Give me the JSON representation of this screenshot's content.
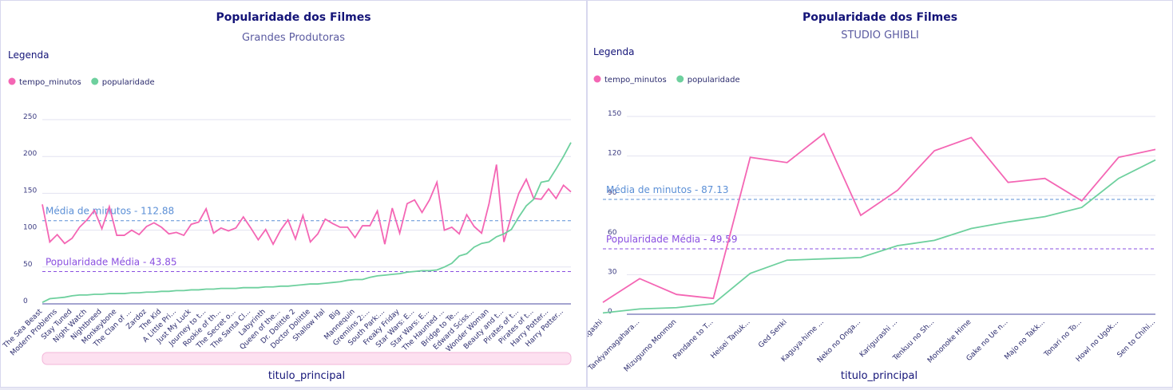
{
  "chart_data": [
    {
      "type": "line",
      "title": "Popularidade dos Filmes",
      "subtitle": "Grandes Produtoras",
      "legend_title": "Legenda",
      "x_label": "titulo_principal",
      "categories": [
        "The Sea Beast",
        null,
        "Modern Problems",
        null,
        "Stay Tuned",
        null,
        "Night Watch",
        null,
        "Nightbreed",
        null,
        "Monkeybone",
        null,
        "The Clan of ...",
        null,
        "Zardoz",
        null,
        "The Kid",
        null,
        "A Little Pri...",
        null,
        "Just My Luck",
        null,
        "Journey to t...",
        null,
        "Rookie of th...",
        null,
        "The Secret o...",
        null,
        "The Santa Cl...",
        null,
        "Labyrinth",
        null,
        "Queen of the...",
        null,
        "Dr. Dolittle 2",
        null,
        "Doctor Dolittle",
        null,
        "Shallow Hal",
        null,
        "Big",
        null,
        "Mannequin",
        null,
        "Gremlins 2:...",
        null,
        "South Park:...",
        null,
        "Freaky Friday",
        null,
        "Star Wars: E...",
        null,
        "Star Wars: E...",
        null,
        "The Haunted ...",
        null,
        "Bridge to Te...",
        null,
        "Edward Sciss...",
        null,
        "Wonder Woman",
        null,
        "Beauty and t...",
        null,
        "Pirates of t...",
        null,
        "Pirates of t...",
        null,
        "Harry Potter...",
        null,
        "Harry Potter...",
        null
      ],
      "series": [
        {
          "name": "tempo_minutos",
          "color": "#f466b4",
          "values": [
            135,
            84,
            94,
            82,
            89,
            104,
            114,
            127,
            102,
            132,
            93,
            93,
            100,
            94,
            105,
            110,
            104,
            95,
            97,
            93,
            108,
            111,
            129,
            96,
            103,
            99,
            103,
            118,
            103,
            87,
            101,
            81,
            100,
            114,
            88,
            120,
            84,
            95,
            115,
            109,
            104,
            104,
            90,
            106,
            106,
            126,
            81,
            130,
            96,
            136,
            141,
            124,
            141,
            165,
            100,
            104,
            95,
            121,
            105,
            96,
            136,
            189,
            84,
            119,
            150,
            169,
            143,
            142,
            156,
            143,
            161,
            152
          ]
        },
        {
          "name": "popularidade",
          "color": "#6ed09e",
          "values": [
            2,
            7,
            8,
            9,
            11,
            12,
            12,
            13,
            13,
            14,
            14,
            14,
            15,
            15,
            16,
            16,
            17,
            17,
            18,
            18,
            19,
            19,
            20,
            20,
            21,
            21,
            21,
            22,
            22,
            22,
            23,
            23,
            24,
            24,
            25,
            26,
            27,
            27,
            28,
            29,
            30,
            32,
            33,
            33,
            36,
            38,
            39,
            40,
            41,
            43,
            44,
            45,
            45,
            46,
            50,
            55,
            65,
            68,
            77,
            82,
            84,
            91,
            95,
            101,
            118,
            133,
            142,
            165,
            167,
            183,
            200,
            219
          ]
        }
      ],
      "reference_lines": [
        {
          "label": "Média de minutos - 112.88",
          "value": 112.88,
          "color": "#5b8fd6"
        },
        {
          "label": "Popularidade Média - 43.85",
          "value": 43.85,
          "color": "#8a4fe0"
        }
      ],
      "ylim": [
        0,
        250
      ],
      "yticks": [
        0,
        50,
        100,
        150,
        200,
        250
      ],
      "grid": true
    },
    {
      "type": "line",
      "title": "Popularidade dos Filmes",
      "subtitle": "STUDIO GHIBLI",
      "legend_title": "Legenda",
      "x_label": "titulo_principal",
      "categories": [
        "Takara-sagashi",
        "Tanéyamagahara...",
        "Mizugumo Monmon",
        "Pandane to T...",
        "Heisei Tanuk...",
        "Ged Senki",
        "Kaguya-hime ...",
        "Neko no Onga...",
        "Karigurashi ...",
        "Tenkuu no Sh...",
        "Mononoke Hime",
        "Gake no Ue n...",
        "Majo no Takk...",
        "Tonari no To...",
        "Howl no Ugok...",
        "Sen to Chihi..."
      ],
      "series": [
        {
          "name": "tempo_minutos",
          "color": "#f466b4",
          "values": [
            9,
            27,
            15,
            12,
            119,
            115,
            137,
            75,
            94,
            124,
            134,
            100,
            103,
            86,
            119,
            125
          ]
        },
        {
          "name": "popularidade",
          "color": "#6ed09e",
          "values": [
            1,
            4,
            5,
            8,
            31,
            41,
            42,
            43,
            52,
            56,
            65,
            70,
            74,
            81,
            103,
            117
          ]
        }
      ],
      "reference_lines": [
        {
          "label": "Média de minutos -  87.13",
          "value": 87.13,
          "color": "#5b8fd6"
        },
        {
          "label": "Popularidade Média -  49.59",
          "value": 49.59,
          "color": "#8a4fe0"
        }
      ],
      "ylim": [
        0,
        150
      ],
      "yticks": [
        0,
        30,
        60,
        90,
        120,
        150
      ],
      "grid": true
    }
  ]
}
